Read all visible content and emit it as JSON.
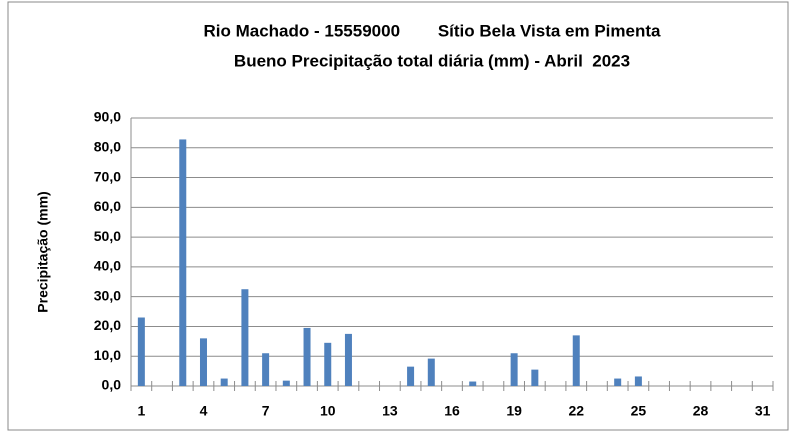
{
  "chart_data": {
    "type": "bar",
    "title": [
      "Rio Machado - 15559000        Sítio Bela Vista em Pimenta",
      "Bueno Precipitação total diária (mm) - Abril  2023"
    ],
    "y_label": "Precipitação (mm)",
    "categories": [
      "1",
      null,
      null,
      "4",
      null,
      null,
      "7",
      null,
      null,
      "10",
      null,
      null,
      "13",
      null,
      null,
      "16",
      null,
      null,
      "19",
      null,
      null,
      "22",
      null,
      null,
      "25",
      null,
      null,
      "28",
      null,
      null,
      "31"
    ],
    "values": [
      23,
      0,
      82.8,
      16,
      2.5,
      32.5,
      11,
      1.8,
      19.5,
      14.5,
      17.5,
      0,
      0,
      6.5,
      9.2,
      0,
      1.5,
      0,
      11,
      5.5,
      0,
      17,
      0,
      2.5,
      3.2,
      0,
      0,
      0,
      0,
      0,
      0
    ],
    "color": "#4f81bd",
    "ylim": [
      0,
      90
    ],
    "yticks": [
      {
        "value": 0,
        "label": "0,0"
      },
      {
        "value": 10,
        "label": "10,0"
      },
      {
        "value": 20,
        "label": "20,0"
      },
      {
        "value": 30,
        "label": "30,0"
      },
      {
        "value": 40,
        "label": "40,0"
      },
      {
        "value": 50,
        "label": "50,0"
      },
      {
        "value": 60,
        "label": "60,0"
      },
      {
        "value": 70,
        "label": "70,0"
      },
      {
        "value": 80,
        "label": "80,0"
      },
      {
        "value": 90,
        "label": "90,0"
      }
    ],
    "grid": true
  }
}
